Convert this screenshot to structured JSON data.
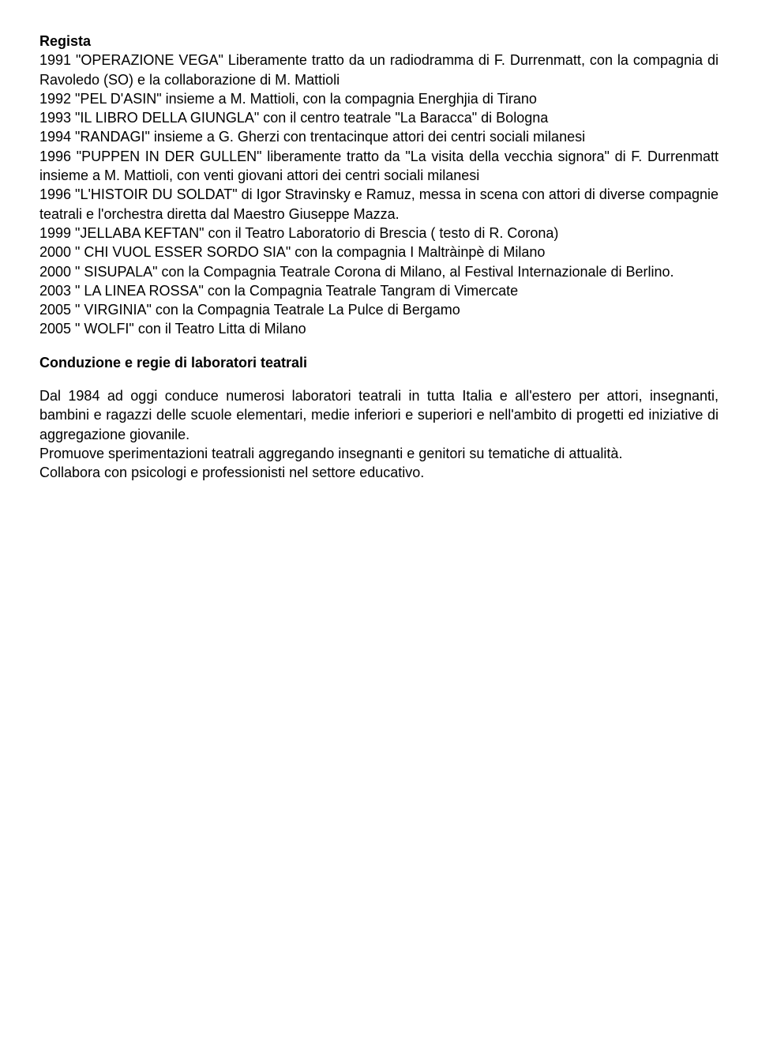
{
  "heading1": "Regista",
  "entries": [
    "1991 \"OPERAZIONE VEGA\"  Liberamente tratto da un radiodramma di F. Durrenmatt, con la compagnia di Ravoledo (SO) e la collaborazione di M. Mattioli",
    "1992 \"PEL D'ASIN\"  insieme a M. Mattioli, con la compagnia Energhjia di Tirano",
    "1993 \"IL LIBRO DELLA GIUNGLA\"  con il centro teatrale \"La Baracca\" di Bologna",
    "1994 \"RANDAGI\"  insieme a G. Gherzi con trentacinque attori dei centri sociali milanesi",
    "1996 \"PUPPEN IN DER GULLEN\"  liberamente tratto da \"La visita della vecchia signora\" di F. Durrenmatt insieme a M. Mattioli, con venti giovani attori dei centri sociali milanesi",
    "1996 \"L'HISTOIR DU SOLDAT\"  di Igor Stravinsky e Ramuz, messa in scena con attori di diverse compagnie teatrali e l'orchestra diretta dal Maestro Giuseppe Mazza.",
    "1999 \"JELLABA KEFTAN\"  con il Teatro Laboratorio di Brescia ( testo di R. Corona)",
    "2000 \" CHI VUOL ESSER SORDO SIA\"  con la compagnia I Maltràinpè di Milano",
    "2000 \" SISUPALA\"  con la Compagnia Teatrale Corona di Milano, al Festival Internazionale di Berlino.",
    "2003  \" LA LINEA ROSSA\"   con la Compagnia Teatrale Tangram di Vimercate",
    "2005 \" VIRGINIA\"  con la Compagnia Teatrale La Pulce di Bergamo",
    "2005 \" WOLFI\"  con il Teatro Litta di Milano"
  ],
  "heading2": "Conduzione e regie di laboratori teatrali",
  "para1": "Dal 1984 ad oggi conduce numerosi laboratori teatrali in tutta Italia e all'estero per attori, insegnanti, bambini e ragazzi delle scuole elementari, medie inferiori e superiori e nell'ambito di progetti ed iniziative di aggregazione giovanile.",
  "para2": "Promuove sperimentazioni teatrali aggregando insegnanti e genitori su tematiche di attualità.",
  "para3": "Collabora con psicologi e professionisti nel settore educativo.",
  "colors": {
    "background": "#ffffff",
    "text": "#000000"
  },
  "typography": {
    "font_family": "Comic Sans MS",
    "font_size_pt": 14,
    "line_height": 1.35
  }
}
